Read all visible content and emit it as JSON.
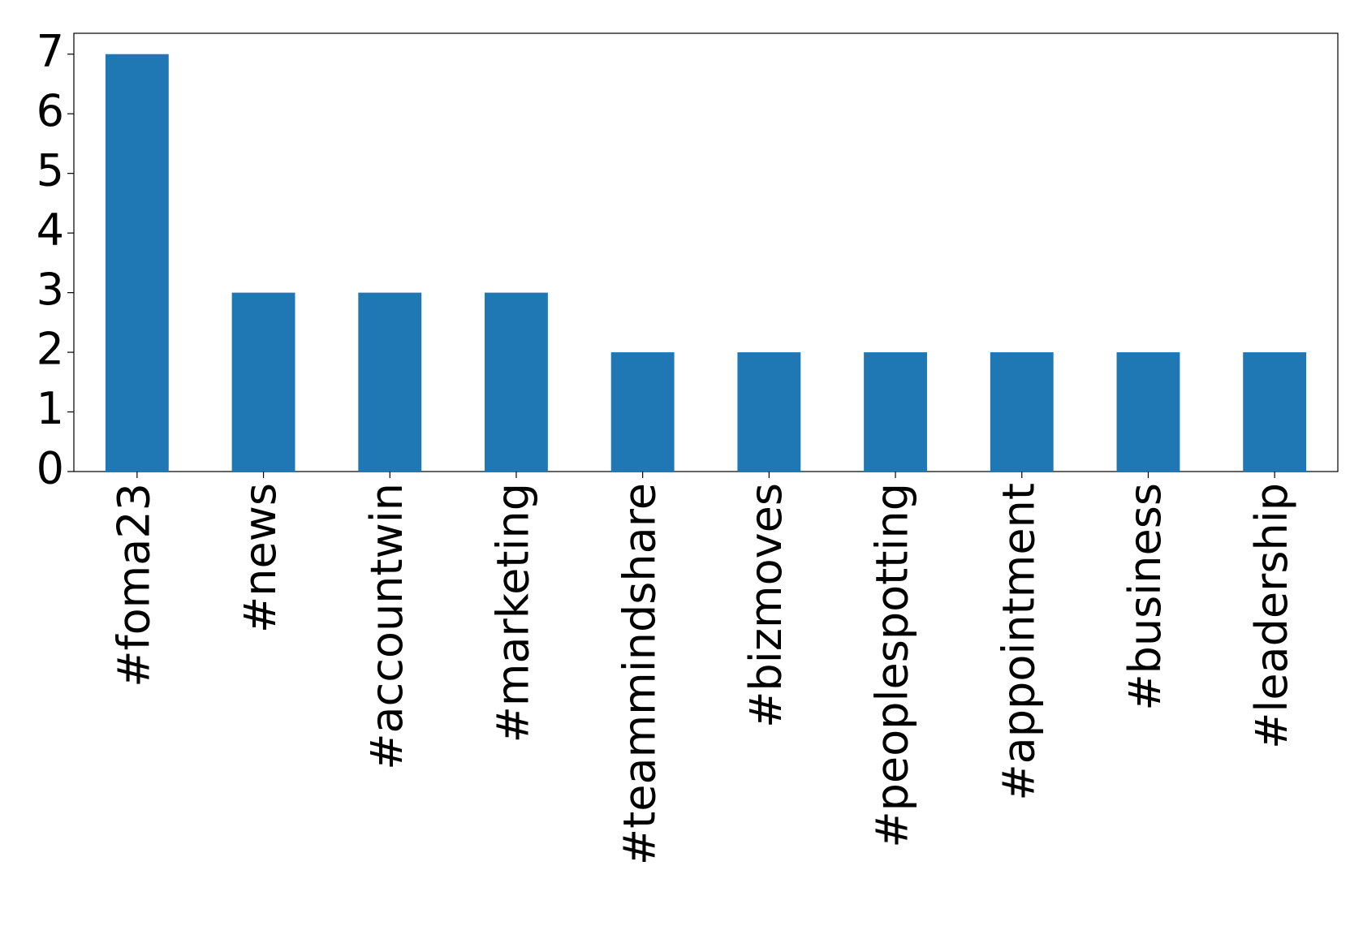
{
  "chart_data": {
    "type": "bar",
    "categories": [
      "#foma23",
      "#news",
      "#accountwin",
      "#marketing",
      "#teammindshare",
      "#bizmoves",
      "#peoplespotting",
      "#appointment",
      "#business",
      "#leadership"
    ],
    "values": [
      7,
      3,
      3,
      3,
      2,
      2,
      2,
      2,
      2,
      2
    ],
    "color": "#1f77b4",
    "ylim": [
      0,
      7.35
    ],
    "yticks": [
      0,
      1,
      2,
      3,
      4,
      5,
      6,
      7
    ],
    "grid": false
  }
}
